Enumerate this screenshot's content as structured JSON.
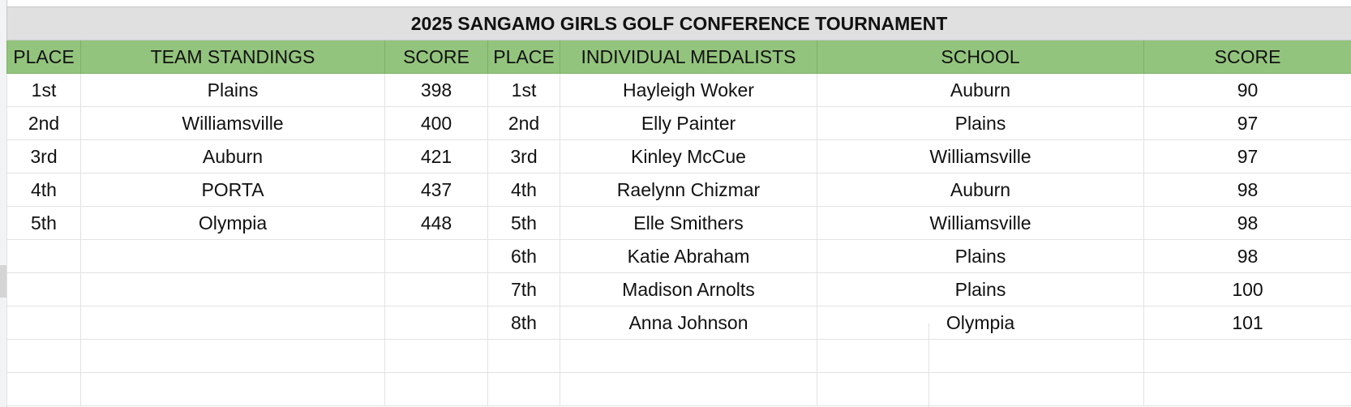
{
  "title": "2025 SANGAMO GIRLS GOLF CONFERENCE TOURNAMENT",
  "headers": {
    "place_left": "PLACE",
    "team_standings": "TEAM STANDINGS",
    "score_left": "SCORE",
    "place_right": "PLACE",
    "individual_medalists": "INDIVIDUAL MEDALISTS",
    "school": "SCHOOL",
    "score_right": "SCORE"
  },
  "rows": [
    {
      "team_place": "1st",
      "team": "Plains",
      "team_score": "398",
      "ind_place": "1st",
      "name": "Hayleigh Woker",
      "school": "Auburn",
      "score": "90"
    },
    {
      "team_place": "2nd",
      "team": "Williamsville",
      "team_score": "400",
      "ind_place": "2nd",
      "name": "Elly Painter",
      "school": "Plains",
      "score": "97"
    },
    {
      "team_place": "3rd",
      "team": "Auburn",
      "team_score": "421",
      "ind_place": "3rd",
      "name": "Kinley McCue",
      "school": "Williamsville",
      "score": "97"
    },
    {
      "team_place": "4th",
      "team": "PORTA",
      "team_score": "437",
      "ind_place": "4th",
      "name": "Raelynn Chizmar",
      "school": "Auburn",
      "score": "98"
    },
    {
      "team_place": "5th",
      "team": "Olympia",
      "team_score": "448",
      "ind_place": "5th",
      "name": "Elle Smithers",
      "school": "Williamsville",
      "score": "98"
    },
    {
      "team_place": "",
      "team": "",
      "team_score": "",
      "ind_place": "6th",
      "name": "Katie Abraham",
      "school": "Plains",
      "score": "98"
    },
    {
      "team_place": "",
      "team": "",
      "team_score": "",
      "ind_place": "7th",
      "name": "Madison Arnolts",
      "school": "Plains",
      "score": "100"
    },
    {
      "team_place": "",
      "team": "",
      "team_score": "",
      "ind_place": "8th",
      "name": "Anna Johnson",
      "school": "Olympia",
      "score": "101"
    }
  ]
}
